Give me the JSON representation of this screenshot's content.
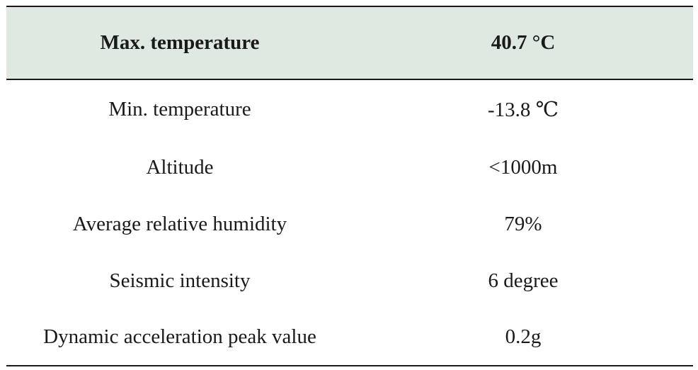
{
  "table": {
    "header": {
      "label": "Max. temperature",
      "value": "40.7 °C"
    },
    "rows": [
      {
        "label": "Min. temperature",
        "value": "-13.8 ℃"
      },
      {
        "label": "Altitude",
        "value": "<1000m"
      },
      {
        "label": "Average relative humidity",
        "value": "79%"
      },
      {
        "label": "Seismic intensity",
        "value": "6 degree"
      },
      {
        "label": "Dynamic acceleration peak value",
        "value": "0.2g"
      }
    ]
  },
  "colors": {
    "header_background": "#dde9e1",
    "rule": "#1a1a1a"
  }
}
